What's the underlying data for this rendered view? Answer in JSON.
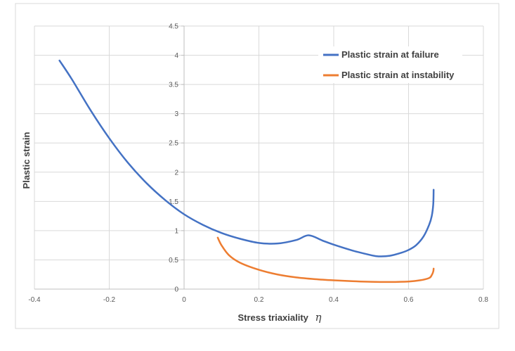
{
  "chart_data": {
    "type": "line",
    "title": "",
    "xlabel": "Stress triaxiality",
    "xlabel_symbol": "η",
    "ylabel": "Plastic strain",
    "xlim": [
      -0.4,
      0.8
    ],
    "ylim": [
      0,
      4.5
    ],
    "x_ticks": [
      "-0.4",
      "-0.2",
      "0",
      "0.2",
      "0.4",
      "0.6",
      "0.8"
    ],
    "y_ticks": [
      "0",
      "0.5",
      "1",
      "1.5",
      "2",
      "2.5",
      "3",
      "3.5",
      "4",
      "4.5"
    ],
    "grid": true,
    "legend_position": "top-right",
    "series": [
      {
        "name": "Plastic strain at failure",
        "color": "#4472C4",
        "points": [
          [
            -0.333,
            3.91
          ],
          [
            -0.3,
            3.59
          ],
          [
            -0.25,
            3.06
          ],
          [
            -0.2,
            2.58
          ],
          [
            -0.15,
            2.16
          ],
          [
            -0.1,
            1.81
          ],
          [
            -0.05,
            1.52
          ],
          [
            0.0,
            1.28
          ],
          [
            0.05,
            1.1
          ],
          [
            0.1,
            0.96
          ],
          [
            0.15,
            0.86
          ],
          [
            0.2,
            0.79
          ],
          [
            0.25,
            0.78
          ],
          [
            0.3,
            0.84
          ],
          [
            0.333,
            0.92
          ],
          [
            0.37,
            0.83
          ],
          [
            0.4,
            0.76
          ],
          [
            0.45,
            0.66
          ],
          [
            0.5,
            0.58
          ],
          [
            0.52,
            0.56
          ],
          [
            0.55,
            0.57
          ],
          [
            0.58,
            0.62
          ],
          [
            0.6,
            0.67
          ],
          [
            0.62,
            0.75
          ],
          [
            0.64,
            0.9
          ],
          [
            0.655,
            1.1
          ],
          [
            0.662,
            1.25
          ],
          [
            0.666,
            1.45
          ],
          [
            0.667,
            1.7
          ]
        ]
      },
      {
        "name": "Plastic strain at instability",
        "color": "#ED7D31",
        "points": [
          [
            0.09,
            0.88
          ],
          [
            0.1,
            0.75
          ],
          [
            0.12,
            0.58
          ],
          [
            0.15,
            0.45
          ],
          [
            0.2,
            0.33
          ],
          [
            0.25,
            0.25
          ],
          [
            0.3,
            0.2
          ],
          [
            0.35,
            0.17
          ],
          [
            0.4,
            0.15
          ],
          [
            0.45,
            0.135
          ],
          [
            0.5,
            0.125
          ],
          [
            0.55,
            0.122
          ],
          [
            0.6,
            0.13
          ],
          [
            0.63,
            0.15
          ],
          [
            0.655,
            0.19
          ],
          [
            0.662,
            0.24
          ],
          [
            0.666,
            0.3
          ],
          [
            0.667,
            0.35
          ]
        ]
      }
    ]
  }
}
